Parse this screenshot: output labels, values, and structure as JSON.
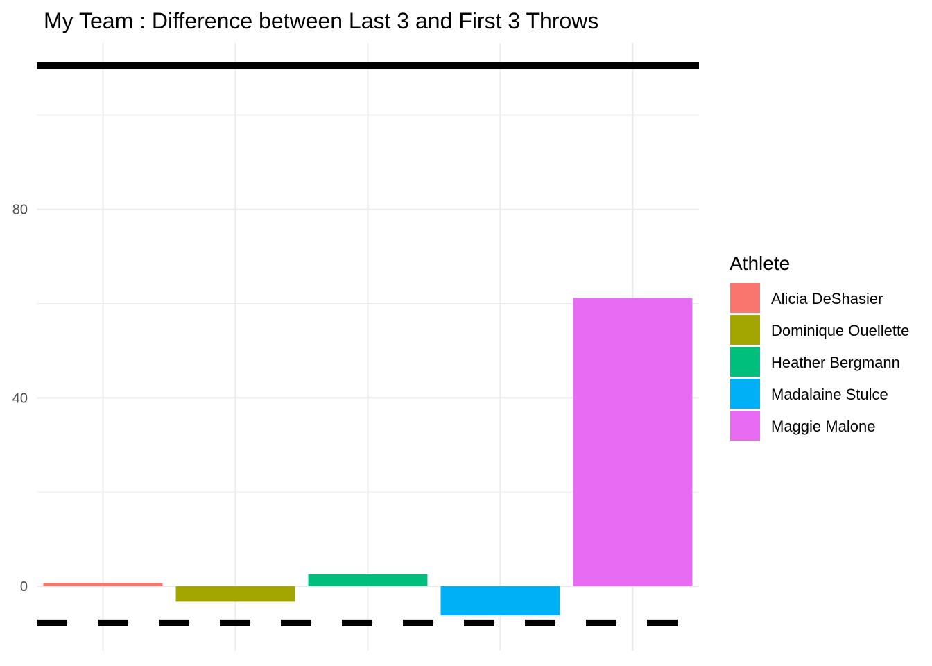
{
  "chart_data": {
    "type": "bar",
    "title": "My Team : Difference between Last 3 and First 3 Throws",
    "xlabel": "",
    "ylabel": "",
    "categories": [
      "Alicia DeShasier",
      "Dominique Ouellette",
      "Heather Bergmann",
      "Madalaine Stulce",
      "Maggie Malone"
    ],
    "values": [
      0.7,
      -3.3,
      2.5,
      -6.2,
      61.2
    ],
    "colors": [
      "#F8766D",
      "#A3A500",
      "#00BF7D",
      "#00B0F6",
      "#E76BF3"
    ],
    "ylim": [
      -13.7,
      115.3
    ],
    "yticks": [
      0,
      40,
      80
    ],
    "ytick_labels": [
      "0",
      "40",
      "80"
    ],
    "grid": true,
    "reference_lines": [
      {
        "y": 110.5,
        "style": "solid",
        "color": "#000000"
      },
      {
        "y": -7.8,
        "style": "dashed",
        "color": "#000000"
      }
    ],
    "legend": {
      "title": "Athlete",
      "position": "right",
      "entries": [
        "Alicia DeShasier",
        "Dominique Ouellette",
        "Heather Bergmann",
        "Madalaine Stulce",
        "Maggie Malone"
      ]
    }
  }
}
